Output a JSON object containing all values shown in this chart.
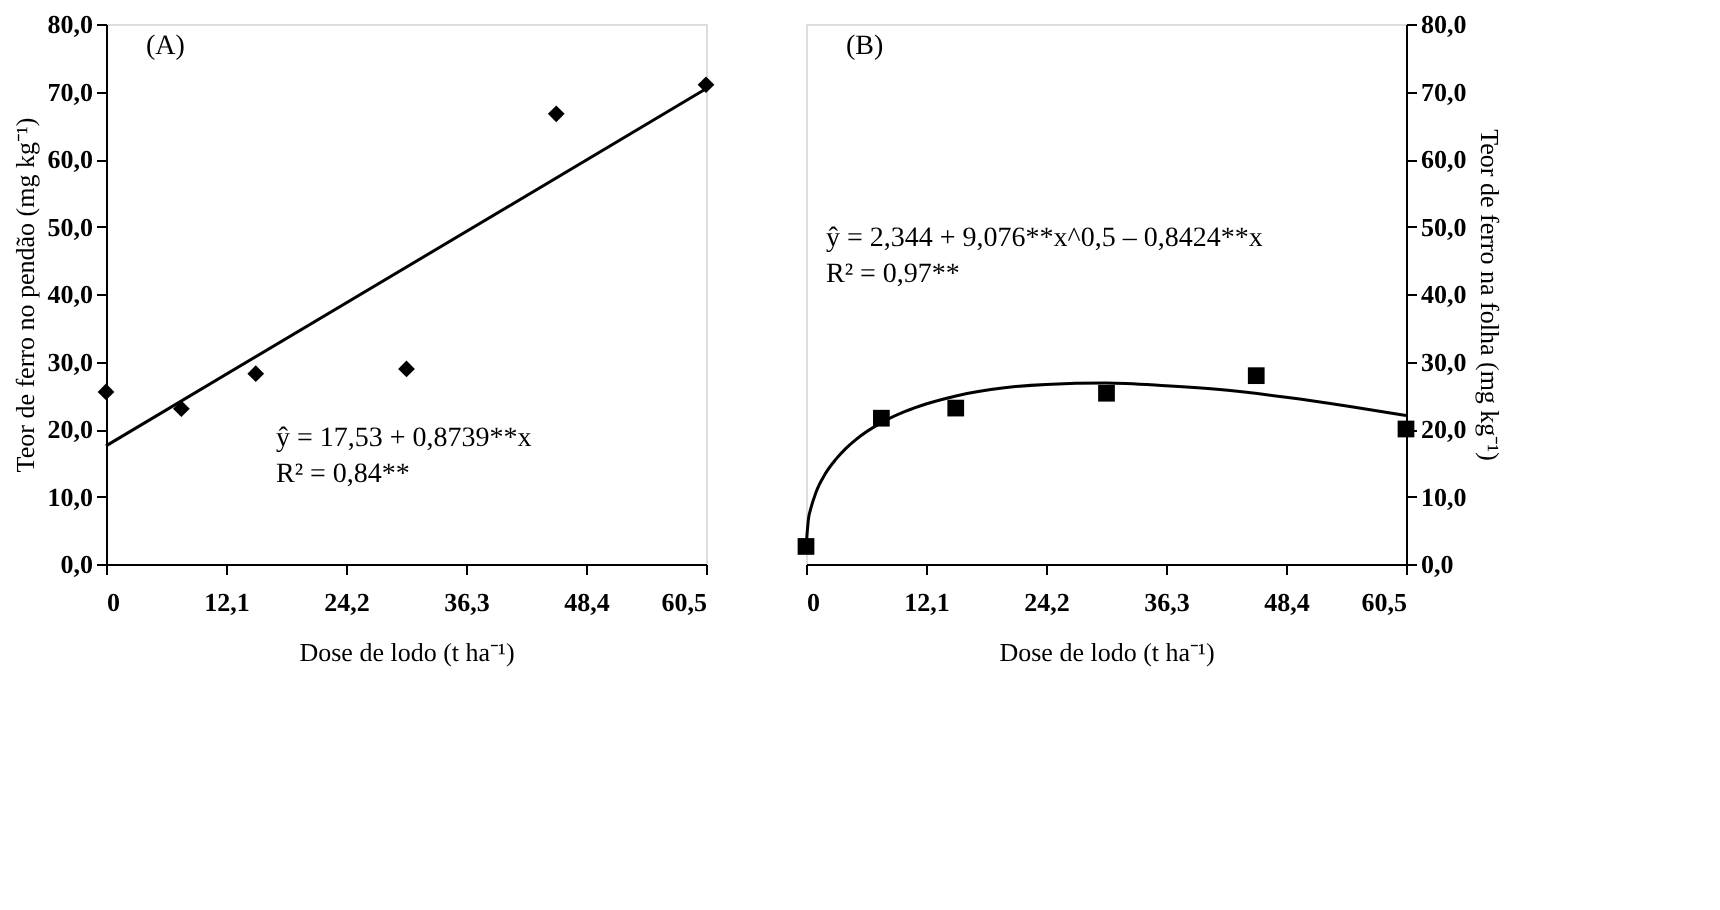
{
  "chart_data": [
    {
      "type": "scatter",
      "title": "(A)",
      "xlabel": "Dose de lodo (t ha⁻¹)",
      "ylabel": "Teor de ferro no pendão (mg kg⁻¹)",
      "grid": false,
      "annotations": [
        "ŷ = 17,53 + 0,8739**x",
        "R² = 0,84**"
      ],
      "xlim": [
        0,
        60.5
      ],
      "xticks": [
        0,
        {
          "value": 12.1,
          "label": "12,1"
        },
        {
          "value": 24.2,
          "label": "24,2"
        },
        {
          "value": 36.3,
          "label": "36,3"
        },
        {
          "value": 48.4,
          "label": "48,4"
        },
        {
          "value": 60.5,
          "label": "60,5"
        }
      ],
      "ylim": [
        0,
        80
      ],
      "yticks": [
        {
          "value": 0,
          "label": "0,0"
        },
        {
          "value": 10,
          "label": "10,0"
        },
        {
          "value": 20,
          "label": "20,0"
        },
        {
          "value": 30,
          "label": "30,0"
        },
        {
          "value": 40,
          "label": "40,0"
        },
        {
          "value": 50,
          "label": "50,0"
        },
        {
          "value": 60,
          "label": "60,0"
        },
        {
          "value": 70,
          "label": "70,0"
        },
        {
          "value": 80,
          "label": "80,0"
        }
      ],
      "series": [
        {
          "type": "scatter",
          "marker": "diamond",
          "color": "#000000",
          "x": [
            0,
            7.6,
            15.1,
            30.3,
            45.4,
            60.5
          ],
          "values": [
            25.5,
            23.0,
            28.2,
            28.9,
            66.7,
            71.0
          ]
        },
        {
          "type": "line",
          "marker": "none",
          "color": "#000000",
          "x": [
            0,
            60.5
          ],
          "values": [
            17.5,
            70.4
          ]
        }
      ]
    },
    {
      "type": "scatter",
      "title": "(B)",
      "xlabel": "Dose de lodo (t ha⁻¹)",
      "y2label": "Teor de ferro na folha (mg kg⁻¹)",
      "grid": false,
      "annotations": [
        "ŷ = 2,344 + 9,076**x^0,5 – 0,8424**x",
        "R² = 0,97**"
      ],
      "xlim": [
        0,
        60.5
      ],
      "xticks": [
        0,
        {
          "value": 12.1,
          "label": "12,1"
        },
        {
          "value": 24.2,
          "label": "24,2"
        },
        {
          "value": 36.3,
          "label": "36,3"
        },
        {
          "value": 48.4,
          "label": "48,4"
        },
        {
          "value": 60.5,
          "label": "60,5"
        }
      ],
      "y2lim": [
        0,
        80
      ],
      "y2ticks": [
        {
          "value": 0,
          "label": "0,0"
        },
        {
          "value": 10,
          "label": "10,0"
        },
        {
          "value": 20,
          "label": "20,0"
        },
        {
          "value": 30,
          "label": "30,0"
        },
        {
          "value": 40,
          "label": "40,0"
        },
        {
          "value": 50,
          "label": "50,0"
        },
        {
          "value": 60,
          "label": "60,0"
        },
        {
          "value": 70,
          "label": "70,0"
        },
        {
          "value": 80,
          "label": "80,0"
        }
      ],
      "series": [
        {
          "type": "scatter",
          "marker": "square",
          "axis": "y2",
          "color": "#000000",
          "x": [
            0,
            7.6,
            15.1,
            30.3,
            45.4,
            60.5
          ],
          "values": [
            2.6,
            21.6,
            23.1,
            25.3,
            27.9,
            20.0
          ]
        },
        {
          "type": "line",
          "marker": "none",
          "axis": "y2",
          "color": "#000000",
          "x": [
            0,
            0.25,
            0.5,
            1,
            2,
            3,
            4,
            5,
            7.56,
            10,
            12.1,
            15.12,
            20,
            24.2,
            30.25,
            36.3,
            42,
            48.4,
            55,
            60.5
          ],
          "values": [
            2.3,
            6.7,
            8.3,
            10.6,
            13.5,
            15.5,
            17.1,
            18.4,
            20.9,
            22.6,
            23.7,
            24.9,
            26.1,
            26.6,
            26.8,
            26.4,
            25.8,
            24.7,
            23.3,
            22.0
          ]
        }
      ]
    }
  ]
}
